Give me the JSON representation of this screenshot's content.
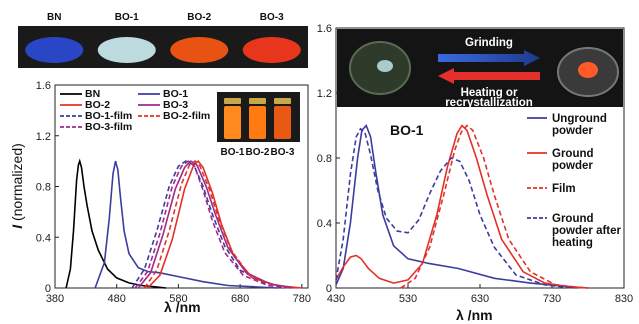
{
  "photos": {
    "labels": [
      "BN",
      "BO-1",
      "BO-2",
      "BO-3"
    ],
    "colors": [
      "#2a4bd8",
      "#cfeff5",
      "#ff5a14",
      "#ff3a1e"
    ]
  },
  "vials": {
    "labels": [
      "BO-1",
      "BO-2",
      "BO-3"
    ]
  },
  "banner": {
    "top_label": "Grinding",
    "bottom_label_1": "Heating or",
    "bottom_label_2": "recrystallization"
  },
  "chart_data": [
    {
      "type": "line",
      "xlabel": "λ /nm",
      "ylabel": "I (normalized)",
      "xlim": [
        380,
        790
      ],
      "ylim": [
        0,
        1.6
      ],
      "xticks": [
        "380",
        "480",
        "580",
        "680",
        "780"
      ],
      "yticks": [
        "0",
        "0.4",
        "0.8",
        "1.2",
        "1.6"
      ],
      "series": [
        {
          "name": "BN",
          "color": "#000000",
          "dash": false,
          "x": [
            398,
            405,
            410,
            415,
            418,
            420,
            423,
            427,
            432,
            440,
            450,
            465,
            480,
            500,
            520,
            540,
            560
          ],
          "y": [
            0.0,
            0.15,
            0.45,
            0.85,
            0.97,
            1.0,
            0.95,
            0.8,
            0.65,
            0.45,
            0.3,
            0.15,
            0.08,
            0.04,
            0.02,
            0.01,
            0.0
          ]
        },
        {
          "name": "BO-1",
          "color": "#3c3ca0",
          "dash": false,
          "x": [
            445,
            460,
            468,
            474,
            478,
            482,
            486,
            492,
            500,
            515,
            530,
            550,
            580,
            620,
            660,
            700,
            740
          ],
          "y": [
            0.0,
            0.2,
            0.55,
            0.9,
            1.0,
            0.93,
            0.72,
            0.45,
            0.27,
            0.16,
            0.13,
            0.12,
            0.09,
            0.05,
            0.02,
            0.01,
            0.0
          ]
        },
        {
          "name": "BO-2",
          "color": "#e4302a",
          "dash": false,
          "x": [
            530,
            550,
            570,
            590,
            605,
            612,
            620,
            635,
            650,
            670,
            700,
            740,
            780
          ],
          "y": [
            0.0,
            0.1,
            0.38,
            0.78,
            0.97,
            1.0,
            0.95,
            0.75,
            0.5,
            0.25,
            0.08,
            0.02,
            0.0
          ]
        },
        {
          "name": "BO-3",
          "color": "#a02a8c",
          "dash": false,
          "x": [
            515,
            535,
            555,
            575,
            590,
            600,
            610,
            625,
            640,
            660,
            690,
            730,
            770
          ],
          "y": [
            0.0,
            0.12,
            0.42,
            0.78,
            0.95,
            1.0,
            0.97,
            0.8,
            0.58,
            0.32,
            0.12,
            0.03,
            0.0
          ]
        },
        {
          "name": "BO-1-film",
          "color": "#3c3ca0",
          "dash": true,
          "x": [
            505,
            525,
            545,
            565,
            580,
            592,
            605,
            620,
            635,
            655,
            680,
            720,
            760
          ],
          "y": [
            0.0,
            0.15,
            0.45,
            0.8,
            0.96,
            1.0,
            0.97,
            0.8,
            0.58,
            0.33,
            0.14,
            0.04,
            0.0
          ]
        },
        {
          "name": "BO-2-film",
          "color": "#e4302a",
          "dash": true,
          "x": [
            525,
            545,
            565,
            585,
            598,
            607,
            615,
            630,
            645,
            665,
            695,
            735,
            775
          ],
          "y": [
            0.0,
            0.14,
            0.45,
            0.82,
            0.97,
            1.0,
            0.96,
            0.78,
            0.55,
            0.3,
            0.1,
            0.02,
            0.0
          ]
        },
        {
          "name": "BO-3-film",
          "color": "#a02a8c",
          "dash": true,
          "x": [
            510,
            530,
            550,
            570,
            585,
            596,
            606,
            620,
            635,
            655,
            685,
            725,
            765
          ],
          "y": [
            0.0,
            0.13,
            0.43,
            0.8,
            0.96,
            1.0,
            0.96,
            0.77,
            0.53,
            0.28,
            0.1,
            0.02,
            0.0
          ]
        }
      ]
    },
    {
      "type": "line",
      "title": "BO-1",
      "xlabel": "λ /nm",
      "xlim": [
        430,
        830
      ],
      "ylim": [
        0,
        1.6
      ],
      "xticks": [
        "430",
        "530",
        "630",
        "730",
        "830"
      ],
      "yticks": [
        "0",
        "0.4",
        "0.8",
        "1.2",
        "1.6"
      ],
      "series": [
        {
          "name": "Unground powder",
          "color": "#3c3ca0",
          "dash": false,
          "x": [
            430,
            440,
            450,
            460,
            466,
            472,
            478,
            485,
            495,
            510,
            530,
            560,
            600,
            650,
            700,
            750,
            780
          ],
          "y": [
            0.02,
            0.12,
            0.4,
            0.8,
            0.97,
            1.0,
            0.93,
            0.72,
            0.45,
            0.26,
            0.18,
            0.15,
            0.12,
            0.06,
            0.03,
            0.01,
            0.0
          ]
        },
        {
          "name": "Ground powder",
          "color": "#e4302a",
          "dash": false,
          "x": [
            430,
            440,
            450,
            458,
            465,
            475,
            490,
            510,
            530,
            550,
            570,
            585,
            598,
            605,
            612,
            625,
            640,
            660,
            690,
            720,
            750,
            780
          ],
          "y": [
            0.05,
            0.13,
            0.19,
            0.2,
            0.18,
            0.12,
            0.06,
            0.03,
            0.05,
            0.15,
            0.45,
            0.75,
            0.95,
            1.0,
            0.97,
            0.8,
            0.57,
            0.3,
            0.1,
            0.03,
            0.01,
            0.0
          ]
        },
        {
          "name": "Film",
          "color": "#e4302a",
          "dash": true,
          "x": [
            520,
            540,
            560,
            580,
            595,
            604,
            612,
            620,
            635,
            650,
            670,
            700,
            735,
            775
          ],
          "y": [
            0.0,
            0.06,
            0.25,
            0.58,
            0.85,
            0.96,
            1.0,
            0.97,
            0.8,
            0.57,
            0.3,
            0.1,
            0.02,
            0.0
          ]
        },
        {
          "name": "Ground powder after heating",
          "color": "#3c3ca0",
          "dash": true,
          "x": [
            430,
            440,
            450,
            458,
            464,
            470,
            478,
            488,
            500,
            515,
            530,
            545,
            560,
            575,
            590,
            602,
            615,
            630,
            650,
            680,
            720,
            760
          ],
          "y": [
            0.05,
            0.3,
            0.7,
            0.93,
            0.98,
            0.96,
            0.82,
            0.6,
            0.43,
            0.35,
            0.34,
            0.42,
            0.58,
            0.72,
            0.8,
            0.78,
            0.66,
            0.45,
            0.25,
            0.08,
            0.02,
            0.0
          ]
        }
      ]
    }
  ]
}
